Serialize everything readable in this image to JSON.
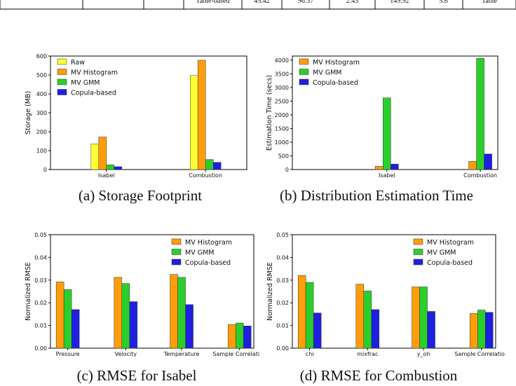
{
  "top_table": {
    "cells": [
      "",
      "",
      "",
      "Table-based",
      "45.42",
      "96.37",
      "2.43",
      "149.92",
      "5.8",
      "Table"
    ]
  },
  "chart_data": [
    {
      "type": "bar",
      "panel": "a",
      "caption": "(a) Storage Footprint",
      "ylabel": "Storage (MB)",
      "xlabel": "",
      "categories": [
        "Isabel",
        "Combustion"
      ],
      "ylim": [
        0,
        600
      ],
      "yticks": [
        0,
        100,
        200,
        300,
        400,
        500,
        600
      ],
      "legend": "top-left",
      "series": [
        {
          "name": "Raw",
          "color": "#ffff33",
          "values": [
            135,
            497
          ]
        },
        {
          "name": "MV Histogram",
          "color": "#ff9d0a",
          "values": [
            172,
            578
          ]
        },
        {
          "name": "MV GMM",
          "color": "#2bcf2b",
          "values": [
            25,
            53
          ]
        },
        {
          "name": "Copula-based",
          "color": "#1f1fe0",
          "values": [
            15,
            38
          ]
        }
      ]
    },
    {
      "type": "bar",
      "panel": "b",
      "caption": "(b) Distribution Estimation Time",
      "ylabel": "Estimation Time (secs)",
      "xlabel": "",
      "categories": [
        "Isabel",
        "Combustion"
      ],
      "ylim": [
        0,
        4150
      ],
      "yticks": [
        0,
        500,
        1000,
        1500,
        2000,
        2500,
        3000,
        3500,
        4000
      ],
      "legend": "top-left",
      "series": [
        {
          "name": "MV Histogram",
          "color": "#ff9d0a",
          "values": [
            120,
            300
          ]
        },
        {
          "name": "MV GMM",
          "color": "#2bcf2b",
          "values": [
            2620,
            4070
          ]
        },
        {
          "name": "Copula-based",
          "color": "#1f1fe0",
          "values": [
            200,
            570
          ]
        }
      ]
    },
    {
      "type": "bar",
      "panel": "c",
      "caption": "(c) RMSE for Isabel",
      "ylabel": "Normalized RMSE",
      "xlabel": "",
      "categories": [
        "Pressure",
        "Velocity",
        "Temperature",
        "Sample Correlation"
      ],
      "ylim": [
        0,
        0.05
      ],
      "yticks": [
        0.0,
        0.01,
        0.02,
        0.03,
        0.04,
        0.05
      ],
      "ytick_labels": [
        "0.00",
        "0.01",
        "0.02",
        "0.03",
        "0.04",
        "0.05"
      ],
      "legend": "top-right",
      "series": [
        {
          "name": "MV Histogram",
          "color": "#ff9d0a",
          "values": [
            0.0292,
            0.0312,
            0.0325,
            0.0104
          ]
        },
        {
          "name": "MV GMM",
          "color": "#2bcf2b",
          "values": [
            0.0258,
            0.0285,
            0.0312,
            0.0111
          ]
        },
        {
          "name": "Copula-based",
          "color": "#1f1fe0",
          "values": [
            0.017,
            0.0205,
            0.0192,
            0.0098
          ]
        }
      ]
    },
    {
      "type": "bar",
      "panel": "d",
      "caption": "(d) RMSE for Combustion",
      "ylabel": "Normalized RMSE",
      "xlabel": "",
      "categories": [
        "chi",
        "mixfrac",
        "y_oh",
        "Sample Correlation"
      ],
      "ylim": [
        0,
        0.05
      ],
      "yticks": [
        0.0,
        0.01,
        0.02,
        0.03,
        0.04,
        0.05
      ],
      "ytick_labels": [
        "0.00",
        "0.01",
        "0.02",
        "0.03",
        "0.04",
        "0.05"
      ],
      "legend": "top-right",
      "series": [
        {
          "name": "MV Histogram",
          "color": "#ff9d0a",
          "values": [
            0.032,
            0.0282,
            0.027,
            0.0153
          ]
        },
        {
          "name": "MV GMM",
          "color": "#2bcf2b",
          "values": [
            0.029,
            0.0252,
            0.027,
            0.0168
          ]
        },
        {
          "name": "Copula-based",
          "color": "#1f1fe0",
          "values": [
            0.0155,
            0.017,
            0.0162,
            0.0158
          ]
        }
      ]
    }
  ]
}
